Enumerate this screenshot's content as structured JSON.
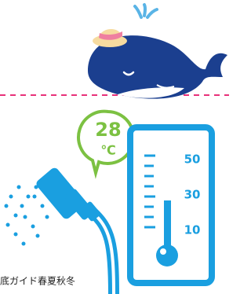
{
  "badge": {
    "value": 28,
    "unit": "℃"
  },
  "thermometer": {
    "labels": [
      50,
      30,
      10
    ]
  },
  "caption": "底ガイド春夏秋冬"
}
